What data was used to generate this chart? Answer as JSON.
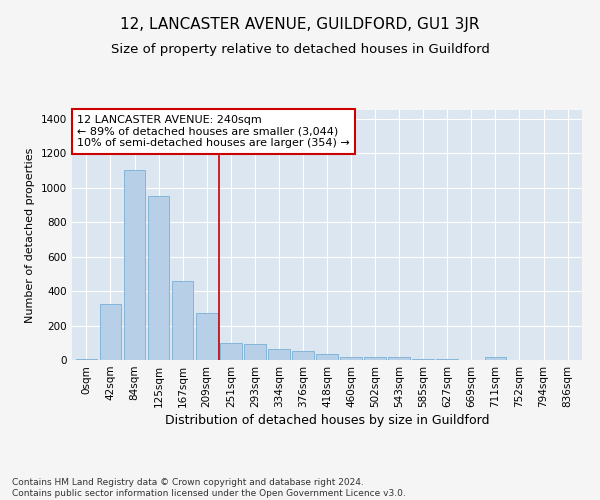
{
  "title": "12, LANCASTER AVENUE, GUILDFORD, GU1 3JR",
  "subtitle": "Size of property relative to detached houses in Guildford",
  "xlabel": "Distribution of detached houses by size in Guildford",
  "ylabel": "Number of detached properties",
  "bar_color": "#b8cfe8",
  "bar_edge_color": "#7aafd4",
  "background_color": "#dce6f0",
  "fig_background_color": "#f5f5f5",
  "grid_color": "#ffffff",
  "categories": [
    "0sqm",
    "42sqm",
    "84sqm",
    "125sqm",
    "167sqm",
    "209sqm",
    "251sqm",
    "293sqm",
    "334sqm",
    "376sqm",
    "418sqm",
    "460sqm",
    "502sqm",
    "543sqm",
    "585sqm",
    "627sqm",
    "669sqm",
    "711sqm",
    "752sqm",
    "794sqm",
    "836sqm"
  ],
  "values": [
    5,
    325,
    1100,
    950,
    460,
    270,
    100,
    95,
    65,
    50,
    35,
    20,
    20,
    20,
    5,
    5,
    0,
    15,
    0,
    0,
    0
  ],
  "ylim": [
    0,
    1450
  ],
  "yticks": [
    0,
    200,
    400,
    600,
    800,
    1000,
    1200,
    1400
  ],
  "vline_color": "#cc0000",
  "vline_x": 5.5,
  "annotation_text": "12 LANCASTER AVENUE: 240sqm\n← 89% of detached houses are smaller (3,044)\n10% of semi-detached houses are larger (354) →",
  "annotation_box_color": "#ffffff",
  "annotation_box_edge": "#cc0000",
  "footer_text": "Contains HM Land Registry data © Crown copyright and database right 2024.\nContains public sector information licensed under the Open Government Licence v3.0.",
  "title_fontsize": 11,
  "subtitle_fontsize": 9.5,
  "xlabel_fontsize": 9,
  "ylabel_fontsize": 8,
  "tick_fontsize": 7.5,
  "annotation_fontsize": 8,
  "footer_fontsize": 6.5
}
